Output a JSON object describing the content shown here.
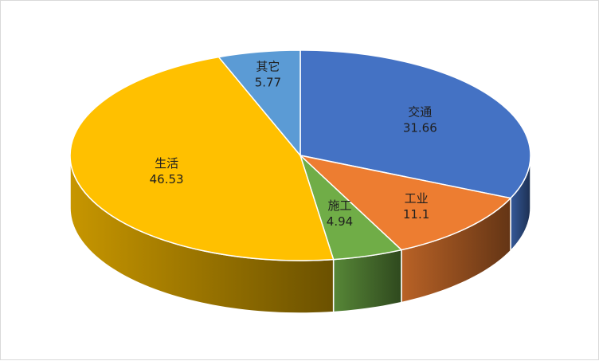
{
  "chart_data": {
    "type": "pie",
    "title": "",
    "slices": [
      {
        "name": "交通",
        "value": 31.66,
        "color": "#4472c4"
      },
      {
        "name": "工业",
        "value": 11.1,
        "color": "#ed7d31"
      },
      {
        "name": "施工",
        "value": 4.94,
        "color": "#70ad47"
      },
      {
        "name": "生活",
        "value": 46.53,
        "color": "#ffc000"
      },
      {
        "name": "其它",
        "value": 5.77,
        "color": "#5b9bd5"
      }
    ],
    "legend": "none",
    "data_labels": "category-and-value"
  }
}
